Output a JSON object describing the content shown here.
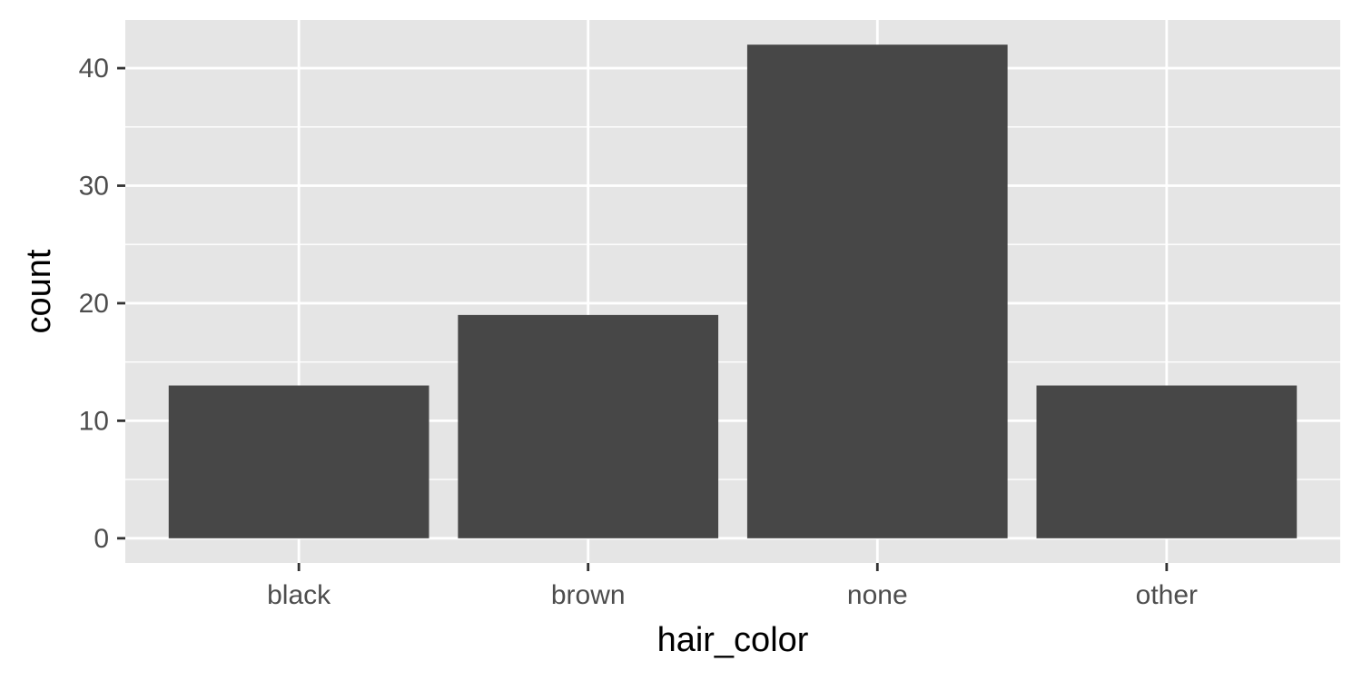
{
  "chart_data": {
    "type": "bar",
    "categories": [
      "black",
      "brown",
      "none",
      "other"
    ],
    "values": [
      13,
      19,
      42,
      13
    ],
    "xlabel": "hair_color",
    "ylabel": "count",
    "ylim": [
      -2.1,
      44.1
    ],
    "yticks": [
      0,
      10,
      20,
      30,
      40
    ],
    "ytick_labels": [
      "0",
      "10",
      "20",
      "30",
      "40"
    ],
    "grid": true,
    "legend": "none"
  },
  "colors": {
    "panel_background": "#e5e5e5",
    "grid_line": "#ffffff",
    "bar_fill": "#474747",
    "tick_mark": "#333333",
    "tick_text": "#4d4d4d",
    "title_text": "#000000"
  }
}
